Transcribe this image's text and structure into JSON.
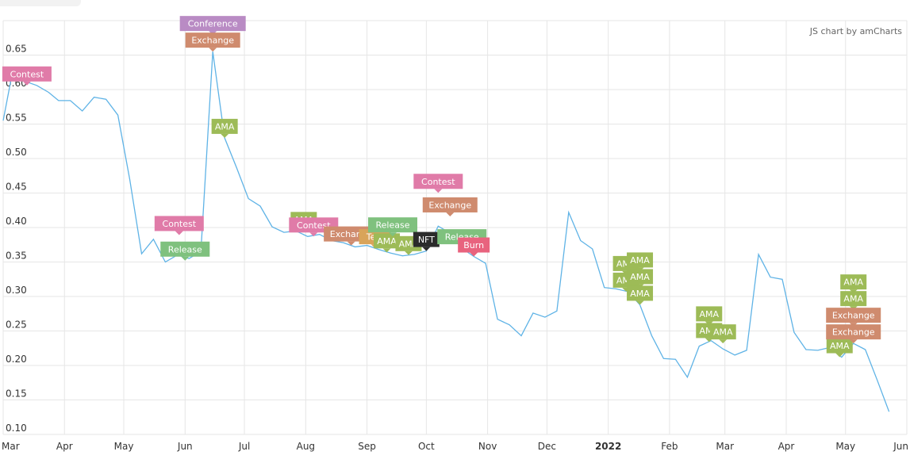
{
  "header": {
    "credit": "JS chart by amCharts"
  },
  "colors": {
    "line": "#5fb3e6",
    "grid": "#e6e6e6",
    "tick_text": "#333333",
    "Contest": "#e07ba8",
    "Conference": "#b98bc4",
    "Exchange": "#cf8b6e",
    "AMA": "#9dbb57",
    "Release": "#7fc17e",
    "Burn": "#e8637e",
    "NFT": "#2b2b2b",
    "Test": "#d9a45a"
  },
  "chart_data": {
    "type": "line",
    "y_ticks": [
      "0.10",
      "0.15",
      "0.20",
      "0.25",
      "0.30",
      "0.35",
      "0.40",
      "0.45",
      "0.50",
      "0.55",
      "0.60",
      "0.65"
    ],
    "ylim": [
      0.1,
      0.7
    ],
    "x_range": [
      "2021-03-01",
      "2022-06-01"
    ],
    "x_ticks": [
      {
        "label": "Mar",
        "date": "2021-03-01"
      },
      {
        "label": "Apr",
        "date": "2021-04-01"
      },
      {
        "label": "May",
        "date": "2021-05-01"
      },
      {
        "label": "Jun",
        "date": "2021-06-01"
      },
      {
        "label": "Jul",
        "date": "2021-07-01"
      },
      {
        "label": "Aug",
        "date": "2021-08-01"
      },
      {
        "label": "Sep",
        "date": "2021-09-01"
      },
      {
        "label": "Oct",
        "date": "2021-10-01"
      },
      {
        "label": "Nov",
        "date": "2021-11-01"
      },
      {
        "label": "Dec",
        "date": "2021-12-01"
      },
      {
        "label": "2022",
        "date": "2022-01-01",
        "bold": true
      },
      {
        "label": "Feb",
        "date": "2022-02-01"
      },
      {
        "label": "Mar",
        "date": "2022-03-01"
      },
      {
        "label": "Apr",
        "date": "2022-04-01"
      },
      {
        "label": "May",
        "date": "2022-05-01"
      },
      {
        "label": "Jun",
        "date": "2022-06-01"
      }
    ],
    "series": [
      {
        "points": [
          [
            "2021-03-01",
            0.555
          ],
          [
            "2021-03-06",
            0.63
          ],
          [
            "2021-03-12",
            0.612
          ],
          [
            "2021-03-18",
            0.606
          ],
          [
            "2021-03-24",
            0.596
          ],
          [
            "2021-03-29",
            0.584
          ],
          [
            "2021-04-04",
            0.584
          ],
          [
            "2021-04-10",
            0.569
          ],
          [
            "2021-04-16",
            0.589
          ],
          [
            "2021-04-22",
            0.586
          ],
          [
            "2021-04-28",
            0.563
          ],
          [
            "2021-05-04",
            0.47
          ],
          [
            "2021-05-10",
            0.362
          ],
          [
            "2021-05-16",
            0.383
          ],
          [
            "2021-05-22",
            0.35
          ],
          [
            "2021-05-28",
            0.36
          ],
          [
            "2021-06-03",
            0.355
          ],
          [
            "2021-06-09",
            0.365
          ],
          [
            "2021-06-15",
            0.655
          ],
          [
            "2021-06-21",
            0.53
          ],
          [
            "2021-06-27",
            0.487
          ],
          [
            "2021-07-03",
            0.442
          ],
          [
            "2021-07-09",
            0.431
          ],
          [
            "2021-07-15",
            0.401
          ],
          [
            "2021-07-21",
            0.393
          ],
          [
            "2021-07-27",
            0.395
          ],
          [
            "2021-08-02",
            0.387
          ],
          [
            "2021-08-08",
            0.39
          ],
          [
            "2021-08-14",
            0.381
          ],
          [
            "2021-08-20",
            0.378
          ],
          [
            "2021-08-26",
            0.372
          ],
          [
            "2021-09-01",
            0.374
          ],
          [
            "2021-09-07",
            0.368
          ],
          [
            "2021-09-13",
            0.363
          ],
          [
            "2021-09-19",
            0.359
          ],
          [
            "2021-09-25",
            0.361
          ],
          [
            "2021-10-01",
            0.366
          ],
          [
            "2021-10-07",
            0.402
          ],
          [
            "2021-10-13",
            0.392
          ],
          [
            "2021-10-19",
            0.37
          ],
          [
            "2021-10-25",
            0.358
          ],
          [
            "2021-10-31",
            0.348
          ],
          [
            "2021-11-06",
            0.267
          ],
          [
            "2021-11-12",
            0.259
          ],
          [
            "2021-11-18",
            0.243
          ],
          [
            "2021-11-24",
            0.276
          ],
          [
            "2021-11-30",
            0.27
          ],
          [
            "2021-12-06",
            0.279
          ],
          [
            "2021-12-12",
            0.422
          ],
          [
            "2021-12-18",
            0.381
          ],
          [
            "2021-12-24",
            0.369
          ],
          [
            "2021-12-30",
            0.313
          ],
          [
            "2022-01-05",
            0.311
          ],
          [
            "2022-01-11",
            0.307
          ],
          [
            "2022-01-17",
            0.288
          ],
          [
            "2022-01-23",
            0.243
          ],
          [
            "2022-01-29",
            0.21
          ],
          [
            "2022-02-04",
            0.209
          ],
          [
            "2022-02-10",
            0.183
          ],
          [
            "2022-02-16",
            0.228
          ],
          [
            "2022-02-22",
            0.236
          ],
          [
            "2022-02-28",
            0.224
          ],
          [
            "2022-03-06",
            0.215
          ],
          [
            "2022-03-12",
            0.222
          ],
          [
            "2022-03-18",
            0.361
          ],
          [
            "2022-03-24",
            0.328
          ],
          [
            "2022-03-30",
            0.325
          ],
          [
            "2022-04-05",
            0.248
          ],
          [
            "2022-04-11",
            0.223
          ],
          [
            "2022-04-17",
            0.222
          ],
          [
            "2022-04-23",
            0.226
          ],
          [
            "2022-04-29",
            0.212
          ],
          [
            "2022-05-05",
            0.232
          ],
          [
            "2022-05-11",
            0.223
          ],
          [
            "2022-05-17",
            0.179
          ],
          [
            "2022-05-23",
            0.133
          ]
        ]
      }
    ],
    "annotations": [
      {
        "text": "Contest",
        "type": "Contest",
        "date": "2021-03-13",
        "value": 0.606,
        "level": 0
      },
      {
        "text": "Conference",
        "type": "Conference",
        "date": "2021-06-15",
        "value": 0.655,
        "level": 1
      },
      {
        "text": "Exchange",
        "type": "Exchange",
        "date": "2021-06-15",
        "value": 0.655,
        "level": 0
      },
      {
        "text": "AMA",
        "type": "AMA",
        "date": "2021-06-21",
        "value": 0.53,
        "level": 0
      },
      {
        "text": "Contest",
        "type": "Contest",
        "date": "2021-05-29",
        "value": 0.365,
        "level": 1
      },
      {
        "text": "Release",
        "type": "Release",
        "date": "2021-06-01",
        "value": 0.352,
        "level": 0
      },
      {
        "text": "AMA",
        "type": "AMA",
        "date": "2021-07-31",
        "value": 0.395,
        "level": 0
      },
      {
        "text": "Contest",
        "type": "Contest",
        "date": "2021-08-05",
        "value": 0.387,
        "level": 0
      },
      {
        "text": "Exchange",
        "type": "Exchange",
        "date": "2021-08-24",
        "value": 0.374,
        "level": 0
      },
      {
        "text": "Test",
        "type": "Test",
        "date": "2021-09-05",
        "value": 0.37,
        "level": 0
      },
      {
        "text": "AMA",
        "type": "AMA",
        "date": "2021-09-11",
        "value": 0.364,
        "level": 0
      },
      {
        "text": "Release",
        "type": "Release",
        "date": "2021-09-14",
        "value": 0.363,
        "level": 1
      },
      {
        "text": "AMA",
        "type": "AMA",
        "date": "2021-09-22",
        "value": 0.36,
        "level": 0
      },
      {
        "text": "NFT",
        "type": "NFT",
        "date": "2021-10-01",
        "value": 0.366,
        "level": 0
      },
      {
        "text": "Contest",
        "type": "Contest",
        "date": "2021-10-07",
        "value": 0.402,
        "level": 2
      },
      {
        "text": "Exchange",
        "type": "Exchange",
        "date": "2021-10-13",
        "value": 0.392,
        "level": 1
      },
      {
        "text": "Release",
        "type": "Release",
        "date": "2021-10-19",
        "value": 0.37,
        "level": 0
      },
      {
        "text": "Burn",
        "type": "Burn",
        "date": "2021-10-25",
        "value": 0.358,
        "level": 0
      },
      {
        "text": "AMA",
        "type": "AMA",
        "date": "2022-01-10",
        "value": 0.307,
        "level": 0
      },
      {
        "text": "AMA",
        "type": "AMA",
        "date": "2022-01-10",
        "value": 0.307,
        "level": 1
      },
      {
        "text": "AMA",
        "type": "AMA",
        "date": "2022-01-17",
        "value": 0.288,
        "level": 0
      },
      {
        "text": "AMA",
        "type": "AMA",
        "date": "2022-01-17",
        "value": 0.288,
        "level": 1
      },
      {
        "text": "AMA",
        "type": "AMA",
        "date": "2022-01-17",
        "value": 0.288,
        "level": 2
      },
      {
        "text": "AMA",
        "type": "AMA",
        "date": "2022-02-21",
        "value": 0.234,
        "level": 0
      },
      {
        "text": "AMA",
        "type": "AMA",
        "date": "2022-02-21",
        "value": 0.234,
        "level": 1
      },
      {
        "text": "AMA",
        "type": "AMA",
        "date": "2022-02-28",
        "value": 0.232,
        "level": 0
      },
      {
        "text": "AMA",
        "type": "AMA",
        "date": "2022-04-28",
        "value": 0.212,
        "level": 0
      },
      {
        "text": "AMA",
        "type": "AMA",
        "date": "2022-05-05",
        "value": 0.232,
        "level": 3
      },
      {
        "text": "AMA",
        "type": "AMA",
        "date": "2022-05-05",
        "value": 0.232,
        "level": 2
      },
      {
        "text": "Exchange",
        "type": "Exchange",
        "date": "2022-05-05",
        "value": 0.232,
        "level": 1
      },
      {
        "text": "Exchange",
        "type": "Exchange",
        "date": "2022-05-05",
        "value": 0.232,
        "level": 0
      }
    ]
  }
}
